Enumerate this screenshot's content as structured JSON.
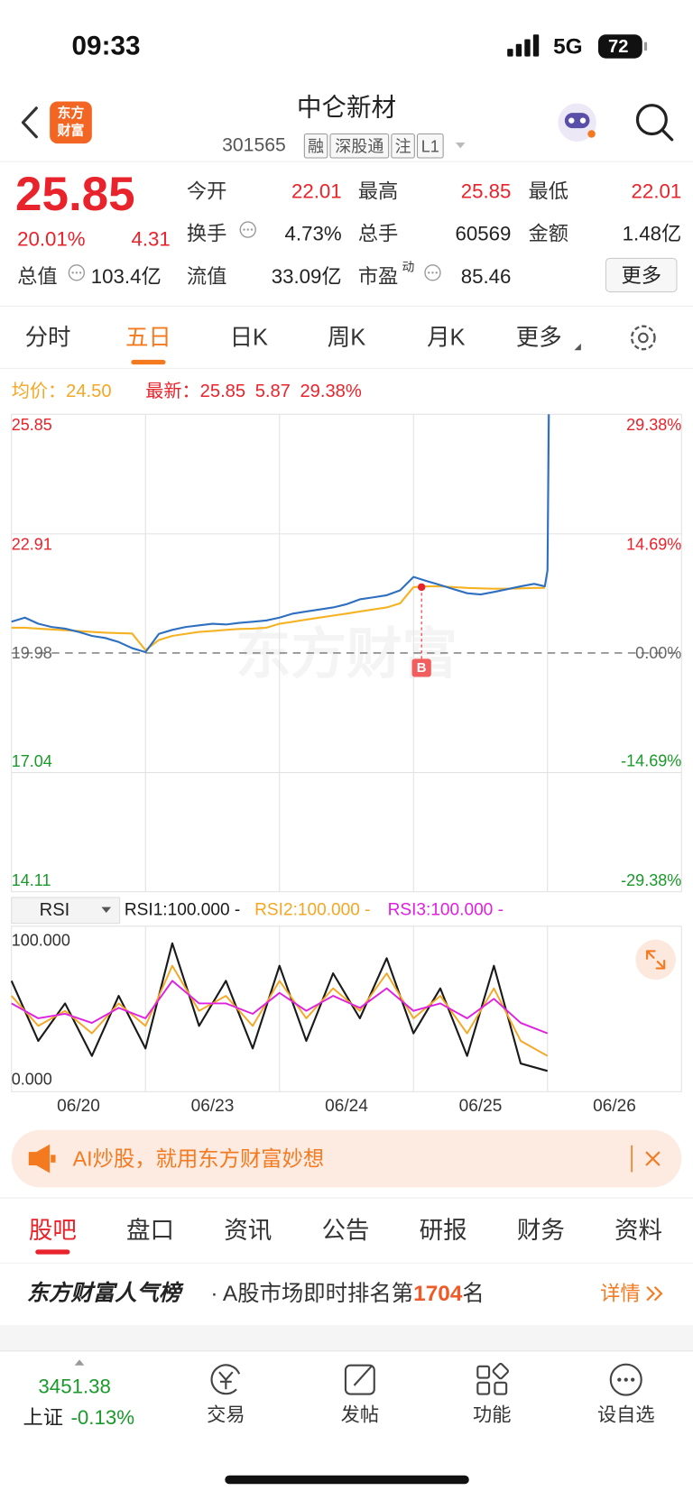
{
  "status_bar": {
    "time": "09:33",
    "network": "5G",
    "battery": "72"
  },
  "header": {
    "logo": [
      "东方",
      "财富"
    ],
    "title": "中仑新材",
    "code": "301565",
    "tags": [
      "融",
      "深股通",
      "注",
      "L1"
    ]
  },
  "quote": {
    "price": "25.85",
    "change_pct": "20.01%",
    "change": "4.31",
    "total_value_label": "总值",
    "total_value": "103.4亿",
    "more": "更多",
    "fields": [
      {
        "label": "今开",
        "value": "22.01"
      },
      {
        "label": "最高",
        "value": "25.85"
      },
      {
        "label": "最低",
        "value": "22.01"
      },
      {
        "label": "换手",
        "value": "4.73%"
      },
      {
        "label": "总手",
        "value": "60569"
      },
      {
        "label": "金额",
        "value": "1.48亿"
      },
      {
        "label": "流值",
        "value": "33.09亿"
      },
      {
        "label": "市盈",
        "sup": "动",
        "value": "85.46"
      }
    ]
  },
  "tabs": {
    "items": [
      "分时",
      "五日",
      "日K",
      "周K",
      "月K",
      "更多"
    ],
    "active": 1
  },
  "chart_data": [
    {
      "type": "line",
      "watermark": "东方财富",
      "x": [
        0,
        0.1,
        0.2,
        0.3,
        0.4,
        0.5,
        0.6,
        0.7,
        0.8,
        0.9,
        1,
        1.1,
        1.2,
        1.3,
        1.4,
        1.5,
        1.6,
        1.7,
        1.8,
        1.9,
        2,
        2.1,
        2.2,
        2.3,
        2.4,
        2.5,
        2.6,
        2.7,
        2.8,
        2.9,
        3,
        3.1,
        3.2,
        3.3,
        3.4,
        3.5,
        3.6,
        3.7,
        3.8,
        3.9,
        3.98,
        4,
        4.01
      ],
      "xlim": [
        0,
        5
      ],
      "ylim": [
        14.11,
        25.85
      ],
      "yticks": [
        25.85,
        22.91,
        19.98,
        17.04,
        14.11
      ],
      "y2lim": [
        -29.38,
        29.38
      ],
      "y2ticks": [
        {
          "value": 29.38,
          "label": "29.38%"
        },
        {
          "value": 14.69,
          "label": "14.69%"
        },
        {
          "value": 0,
          "label": "0.00%"
        },
        {
          "value": -14.69,
          "label": "-14.69%"
        },
        {
          "value": -29.38,
          "label": "-29.38%"
        }
      ],
      "grid": true,
      "series": [
        {
          "name": "最新：",
          "color": "#2f6fc0",
          "legend_values": [
            "25.85",
            "5.87",
            "29.38%"
          ],
          "values": [
            20.75,
            20.85,
            20.7,
            20.62,
            20.58,
            20.5,
            20.4,
            20.35,
            20.25,
            20.1,
            20.0,
            20.45,
            20.55,
            20.62,
            20.66,
            20.7,
            20.68,
            20.72,
            20.75,
            20.78,
            20.85,
            20.95,
            21.0,
            21.05,
            21.1,
            21.18,
            21.3,
            21.35,
            21.4,
            21.52,
            21.85,
            21.75,
            21.65,
            21.55,
            21.45,
            21.42,
            21.48,
            21.55,
            21.62,
            21.68,
            21.62,
            22.01,
            25.85
          ]
        },
        {
          "name": "均价：",
          "color": "#f5b324",
          "legend_values": [
            "24.50"
          ],
          "values": [
            20.6,
            20.6,
            20.58,
            20.56,
            20.54,
            20.52,
            20.5,
            20.48,
            20.47,
            20.46,
            20.05,
            20.3,
            20.4,
            20.45,
            20.5,
            20.52,
            20.55,
            20.57,
            20.58,
            20.6,
            20.7,
            20.75,
            20.8,
            20.85,
            20.9,
            20.95,
            21.0,
            21.05,
            21.1,
            21.2,
            21.6,
            21.62,
            21.62,
            21.6,
            21.58,
            21.57,
            21.56,
            21.56,
            21.57,
            21.58,
            21.58,
            null,
            null
          ]
        }
      ],
      "annotations": [
        {
          "label": "B",
          "x": 3.06,
          "y": 21.6
        }
      ]
    },
    {
      "type": "line",
      "legend_label": "RSI",
      "x": [
        0,
        0.2,
        0.4,
        0.6,
        0.8,
        1,
        1.2,
        1.4,
        1.6,
        1.8,
        2,
        2.2,
        2.4,
        2.6,
        2.8,
        3,
        3.2,
        3.4,
        3.6,
        3.8,
        4
      ],
      "xlim": [
        0,
        5
      ],
      "ylim": [
        0,
        100
      ],
      "yticks": [
        {
          "value": 100,
          "label": "100.000"
        },
        {
          "value": 0,
          "label": "0.000"
        }
      ],
      "xticks": [
        {
          "value": 0.5,
          "label": "06/20"
        },
        {
          "value": 1.5,
          "label": "06/23"
        },
        {
          "value": 2.5,
          "label": "06/24"
        },
        {
          "value": 3.5,
          "label": "06/25"
        },
        {
          "value": 4.5,
          "label": "06/26"
        }
      ],
      "series": [
        {
          "name": "RSI1:100.000 -",
          "color": "#1a1a1a",
          "values": [
            70,
            30,
            55,
            20,
            60,
            25,
            95,
            40,
            70,
            25,
            80,
            30,
            75,
            45,
            85,
            35,
            65,
            20,
            80,
            15,
            10
          ]
        },
        {
          "name": "RSI2:100.000 -",
          "color": "#f5a623",
          "values": [
            60,
            40,
            50,
            35,
            55,
            40,
            80,
            50,
            60,
            40,
            70,
            45,
            65,
            50,
            75,
            45,
            60,
            35,
            65,
            30,
            20
          ]
        },
        {
          "name": "RSI3:100.000 -",
          "color": "#e020e0",
          "values": [
            55,
            45,
            48,
            42,
            52,
            45,
            70,
            55,
            55,
            48,
            62,
            50,
            60,
            52,
            65,
            50,
            55,
            45,
            58,
            42,
            35
          ]
        }
      ]
    }
  ],
  "banner": {
    "text": "AI炒股，就用东方财富妙想"
  },
  "sub_tabs": {
    "items": [
      "股吧",
      "盘口",
      "资讯",
      "公告",
      "研报",
      "财务",
      "资料"
    ],
    "active": 0
  },
  "ranking": {
    "title": "东方财富人气榜",
    "text": "· A股市场即时排名第",
    "rank": "1704",
    "suffix": "名",
    "link": "详情"
  },
  "bottom_bar": {
    "index_value": "3451.38",
    "index_name": "上证",
    "index_change": "-0.13%",
    "items": [
      "交易",
      "发帖",
      "功能",
      "设自选"
    ]
  }
}
